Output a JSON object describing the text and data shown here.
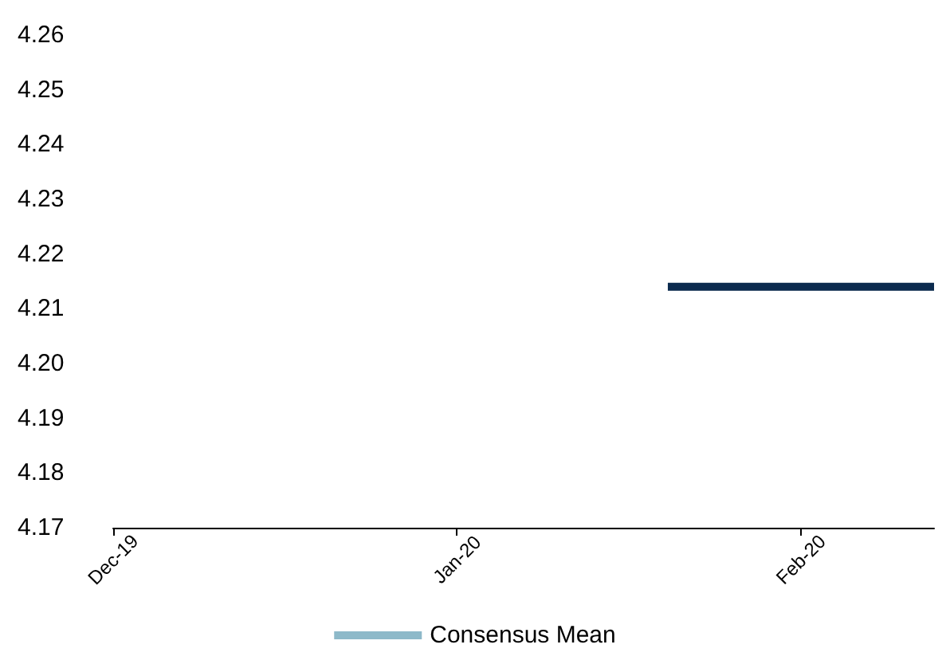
{
  "chart_data": {
    "type": "line",
    "x": [
      "2020-01-20",
      "2020-02-13"
    ],
    "series": [
      {
        "color": "#0b2a4e",
        "values": [
          4.214,
          4.214
        ]
      },
      {
        "name": "Consensus Mean",
        "color": "#8db9c9",
        "values": [
          null,
          null
        ]
      }
    ],
    "xlim": [
      "2019-12-01",
      "2020-02-13"
    ],
    "xticks": [
      {
        "value": "2019-12-01",
        "label": "Dec-19"
      },
      {
        "value": "2020-01-01",
        "label": "Jan-20"
      },
      {
        "value": "2020-02-01",
        "label": "Feb-20"
      }
    ],
    "ylim": [
      4.17,
      4.26
    ],
    "yticks": [
      4.17,
      4.18,
      4.19,
      {
        "value": 4.2,
        "label": "4.20"
      },
      4.21,
      4.22,
      4.23,
      4.24,
      4.25,
      4.26
    ],
    "grid": false,
    "legend": "bottom",
    "marker": "none",
    "line_style": "solid"
  }
}
